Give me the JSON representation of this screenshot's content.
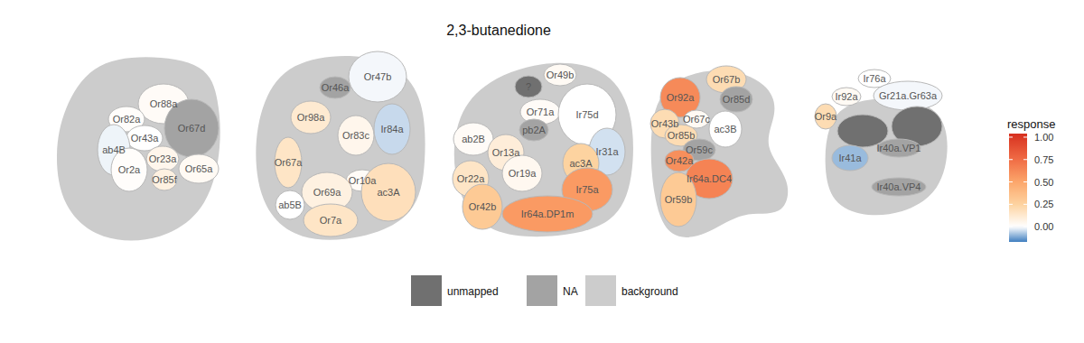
{
  "chart_data": {
    "type": "heatmap",
    "title": "2,3-butanedione",
    "panels": [
      {
        "glomeruli": [
          {
            "name": "Or88a",
            "value": 0.02
          },
          {
            "name": "Or82a",
            "value": 0.01
          },
          {
            "name": "Or67d",
            "value": "NA"
          },
          {
            "name": "Or43a",
            "value": 0.0
          },
          {
            "name": "ab4B",
            "value": -0.015
          },
          {
            "name": "Or23a",
            "value": 0.05
          },
          {
            "name": "Or2a",
            "value": 0.01
          },
          {
            "name": "Or85f",
            "value": 0.08
          },
          {
            "name": "Or65a",
            "value": 0.03
          }
        ]
      },
      {
        "glomeruli": [
          {
            "name": "Or46a",
            "value": "NA"
          },
          {
            "name": "Or47b",
            "value": -0.01
          },
          {
            "name": "Or98a",
            "value": 0.12
          },
          {
            "name": "Or83c",
            "value": 0.05
          },
          {
            "name": "Ir84a",
            "value": -0.05
          },
          {
            "name": "Or67a",
            "value": 0.15
          },
          {
            "name": "Or10a",
            "value": 0.02
          },
          {
            "name": "Or69a",
            "value": 0.08
          },
          {
            "name": "ab5B",
            "value": 0.0
          },
          {
            "name": "Or7a",
            "value": 0.15
          },
          {
            "name": "ac3A",
            "value": 0.18
          }
        ]
      },
      {
        "glomeruli": [
          {
            "name": "?",
            "value": "unmapped"
          },
          {
            "name": "Or49b",
            "value": 0.03
          },
          {
            "name": "Or71a",
            "value": 0.02
          },
          {
            "name": "pb2A",
            "value": "NA"
          },
          {
            "name": "Ir75d",
            "value": 0.0
          },
          {
            "name": "ab2B",
            "value": 0.02
          },
          {
            "name": "Or13a",
            "value": 0.1
          },
          {
            "name": "Ir31a",
            "value": -0.04
          },
          {
            "name": "Or19a",
            "value": 0.04
          },
          {
            "name": "ac3A",
            "value": 0.25
          },
          {
            "name": "Or22a",
            "value": 0.15
          },
          {
            "name": "Or42b",
            "value": 0.3
          },
          {
            "name": "Ir75a",
            "value": 0.55
          },
          {
            "name": "Ir64a.DP1m",
            "value": 0.55
          }
        ]
      },
      {
        "glomeruli": [
          {
            "name": "Or92a",
            "value": 0.62
          },
          {
            "name": "Or67b",
            "value": 0.2
          },
          {
            "name": "Or85d",
            "value": "NA"
          },
          {
            "name": "Or43b",
            "value": 0.2
          },
          {
            "name": "Or67c",
            "value": 0.03
          },
          {
            "name": "ac3B",
            "value": 0.0
          },
          {
            "name": "Or85b",
            "value": 0.2
          },
          {
            "name": "Or59c",
            "value": "NA"
          },
          {
            "name": "Or42a",
            "value": 0.6
          },
          {
            "name": "Ir64a.DC4",
            "value": 0.65
          },
          {
            "name": "Or59b",
            "value": 0.3
          }
        ]
      },
      {
        "glomeruli": [
          {
            "name": "Ir76a",
            "value": 0.0
          },
          {
            "name": "Ir92a",
            "value": 0.03
          },
          {
            "name": "Gr21a.Gr63a",
            "value": -0.01
          },
          {
            "name": "Or9a",
            "value": 0.2
          },
          {
            "name": null,
            "value": "unmapped"
          },
          {
            "name": null,
            "value": "unmapped"
          },
          {
            "name": "Ir40a.VP1",
            "value": "NA"
          },
          {
            "name": "Ir41a",
            "value": -0.09
          },
          {
            "name": "Ir40a.VP4",
            "value": "NA"
          }
        ]
      }
    ],
    "colorbar": {
      "title": "response",
      "range": [
        -0.17,
        1.04
      ],
      "ticks": [
        {
          "value": 0,
          "label": "0.00"
        },
        {
          "value": 0.25,
          "label": "0.25"
        },
        {
          "value": 0.5,
          "label": "0.50"
        },
        {
          "value": 0.75,
          "label": "0.75"
        },
        {
          "value": 1,
          "label": "1.00"
        }
      ]
    },
    "legend": [
      {
        "label": "unmapped",
        "color": "#707070"
      },
      {
        "label": "NA",
        "color": "#a3a3a3"
      },
      {
        "label": "background",
        "color": "#cccccc"
      }
    ]
  }
}
